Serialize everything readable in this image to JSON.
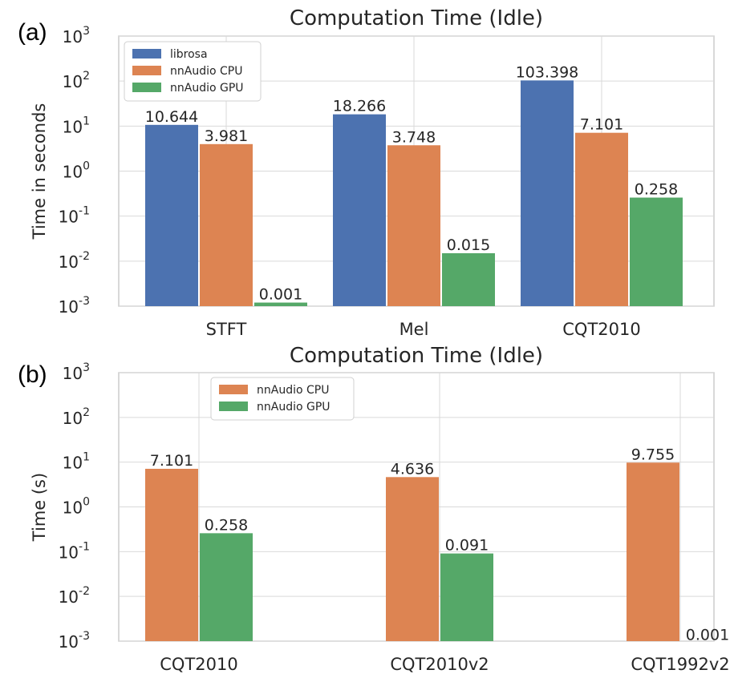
{
  "chart_data": [
    {
      "panel_label": "(a)",
      "type": "bar",
      "title": "Computation Time (Idle)",
      "ylabel": "Time in seconds",
      "xlabel": "",
      "yscale": "log",
      "ylim": [
        0.001,
        1000
      ],
      "yticks": [
        {
          "value": 0.001,
          "exp": "-3"
        },
        {
          "value": 0.01,
          "exp": "-2"
        },
        {
          "value": 0.1,
          "exp": "-1"
        },
        {
          "value": 1,
          "exp": "0"
        },
        {
          "value": 10,
          "exp": "1"
        },
        {
          "value": 100,
          "exp": "2"
        },
        {
          "value": 1000,
          "exp": "3"
        }
      ],
      "grid": true,
      "legend": "top-left",
      "categories": [
        "STFT",
        "Mel",
        "CQT2010"
      ],
      "series": [
        {
          "name": "librosa",
          "color": "#4c72b0",
          "values": [
            10.644,
            18.266,
            103.398
          ],
          "labels": [
            "10.644",
            "18.266",
            "103.398"
          ]
        },
        {
          "name": "nnAudio CPU",
          "color": "#dd8452",
          "values": [
            3.981,
            3.748,
            7.101
          ],
          "labels": [
            "3.981",
            "3.748",
            "7.101"
          ]
        },
        {
          "name": "nnAudio GPU",
          "color": "#55a868",
          "values": [
            0.0012,
            0.015,
            0.258
          ],
          "labels": [
            "0.001",
            "0.015",
            "0.258"
          ]
        }
      ]
    },
    {
      "panel_label": "(b)",
      "type": "bar",
      "title": "Computation Time (Idle)",
      "ylabel": "Time (s)",
      "xlabel": "",
      "yscale": "log",
      "ylim": [
        0.001,
        1000
      ],
      "yticks": [
        {
          "value": 0.001,
          "exp": "-3"
        },
        {
          "value": 0.01,
          "exp": "-2"
        },
        {
          "value": 0.1,
          "exp": "-1"
        },
        {
          "value": 1,
          "exp": "0"
        },
        {
          "value": 10,
          "exp": "1"
        },
        {
          "value": 100,
          "exp": "2"
        },
        {
          "value": 1000,
          "exp": "3"
        }
      ],
      "grid": true,
      "legend": "top-left",
      "categories": [
        "CQT2010",
        "CQT2010v2",
        "CQT1992v2"
      ],
      "series": [
        {
          "name": "nnAudio CPU",
          "color": "#dd8452",
          "values": [
            7.101,
            4.636,
            9.755
          ],
          "labels": [
            "7.101",
            "4.636",
            "9.755"
          ]
        },
        {
          "name": "nnAudio GPU",
          "color": "#55a868",
          "values": [
            0.258,
            0.091,
            0.0009
          ],
          "labels": [
            "0.258",
            "0.091",
            "0.001"
          ]
        }
      ]
    }
  ],
  "tick_base": "10"
}
